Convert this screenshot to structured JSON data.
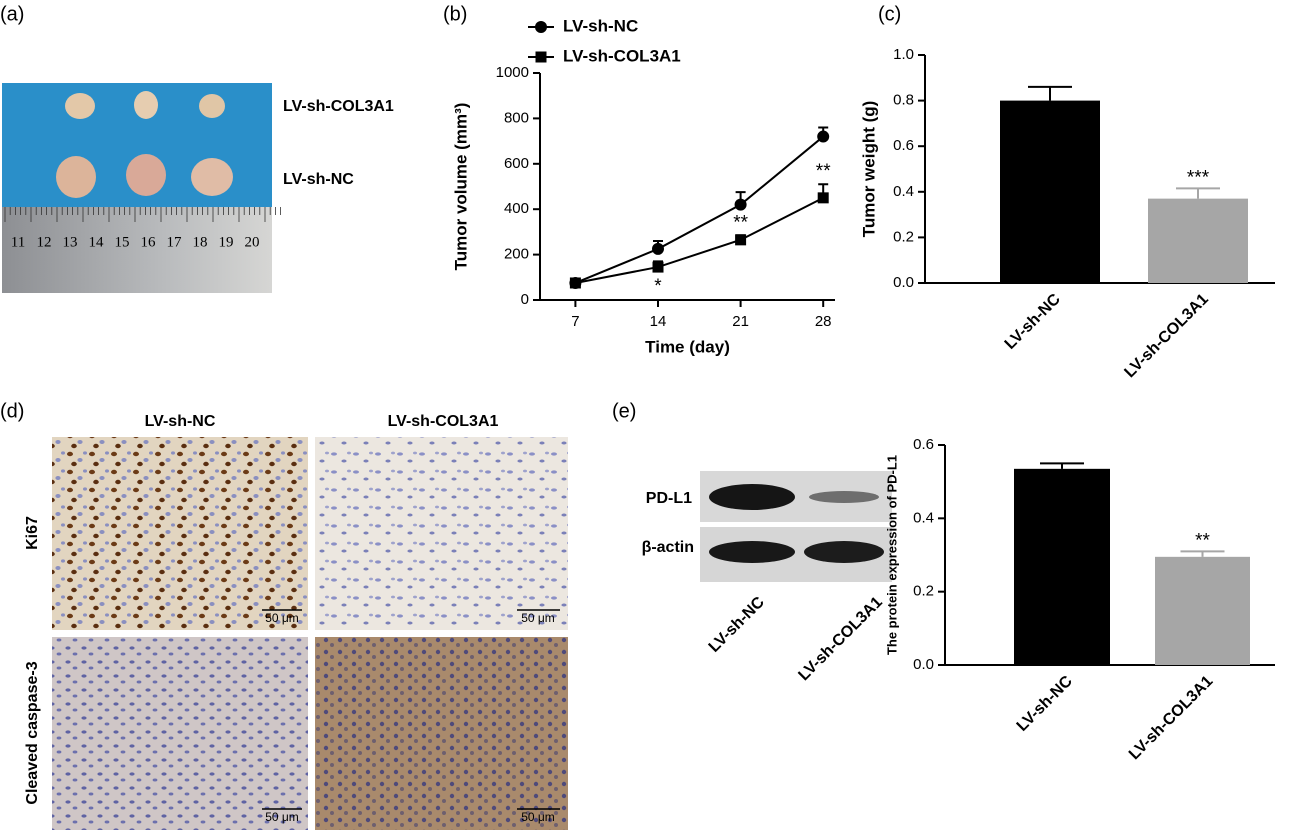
{
  "panel_a": {
    "label": "(a)",
    "row_labels": [
      "LV-sh-COL3A1",
      "LV-sh-NC"
    ],
    "ruler_labels": [
      "11",
      "12",
      "13",
      "14",
      "15",
      "16",
      "17",
      "18",
      "19",
      "20"
    ]
  },
  "panel_d": {
    "label": "(d)",
    "column_labels": [
      "LV-sh-NC",
      "LV-sh-COL3A1"
    ],
    "row_labels": [
      "Ki67",
      "Cleaved caspase-3"
    ],
    "scale_labels": [
      "50 μm",
      "50 μm",
      "50 μm",
      "50 μm"
    ]
  },
  "panel_e_blot": {
    "label": "(e)",
    "band_labels": [
      "PD-L1",
      "β-actin"
    ],
    "lane_labels": [
      "LV-sh-NC",
      "LV-sh-COL3A1"
    ]
  },
  "chart_data": [
    {
      "type": "line",
      "label": "(b)",
      "x_label": "Time (day)",
      "y_label": "Tumor volume (mm³)",
      "x": [
        7,
        14,
        21,
        28
      ],
      "xlim": [
        4,
        29
      ],
      "xticks": [
        7,
        14,
        21,
        28
      ],
      "ylim": [
        0,
        1000
      ],
      "yticks": [
        0,
        200,
        400,
        600,
        800,
        1000
      ],
      "legend": "top-left",
      "series": [
        {
          "name": "LV-sh-NC",
          "color": "#000000",
          "marker": "circle",
          "values": [
            75,
            225,
            420,
            720
          ],
          "errors": [
            10,
            35,
            55,
            40
          ]
        },
        {
          "name": "LV-sh-COL3A1",
          "color": "#000000",
          "marker": "square",
          "values": [
            75,
            145,
            265,
            450
          ],
          "errors": [
            5,
            25,
            20,
            60
          ],
          "significance": [
            null,
            "*",
            "**",
            "**"
          ]
        }
      ]
    },
    {
      "type": "bar",
      "label": "(c)",
      "y_label": "Tumor weight (g)",
      "categories": [
        "LV-sh-NC",
        "LV-sh-COL3A1"
      ],
      "values": [
        0.8,
        0.37
      ],
      "errors": [
        0.06,
        0.045
      ],
      "colors": [
        "#000000",
        "#a6a6a6"
      ],
      "significance": [
        null,
        "***"
      ],
      "ylim": [
        0,
        1
      ],
      "yticks": [
        {
          "value": 0,
          "label": "0.0"
        },
        0.2,
        0.4,
        0.6,
        0.8,
        {
          "value": 1,
          "label": "1.0"
        }
      ]
    },
    {
      "type": "bar",
      "y_label": "The protein expression of PD-L1",
      "categories": [
        "LV-sh-NC",
        "LV-sh-COL3A1"
      ],
      "values": [
        0.535,
        0.295
      ],
      "errors": [
        0.015,
        0.015
      ],
      "colors": [
        "#000000",
        "#a6a6a6"
      ],
      "significance": [
        null,
        "**"
      ],
      "ylim": [
        0,
        0.6
      ],
      "yticks": [
        {
          "value": 0,
          "label": "0.0"
        },
        0.2,
        0.4,
        0.6
      ]
    }
  ]
}
